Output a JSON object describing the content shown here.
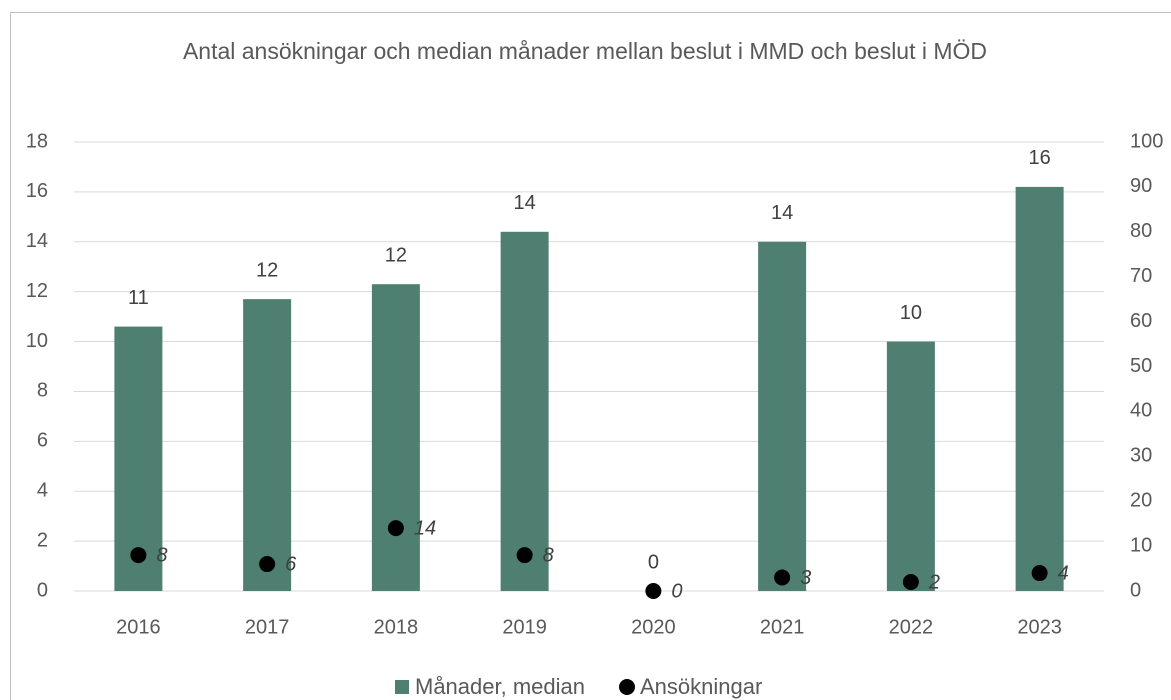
{
  "chart_data": {
    "type": "bar",
    "title": "Antal ansökningar och median månader mellan beslut i MMD och beslut i MÖD",
    "categories": [
      "2016",
      "2017",
      "2018",
      "2019",
      "2020",
      "2021",
      "2022",
      "2023"
    ],
    "series": [
      {
        "name": "Månader, median",
        "color": "#4e7f71",
        "type": "bar",
        "values": [
          10.6,
          11.7,
          12.3,
          14.4,
          0,
          14.0,
          10.0,
          16.2
        ],
        "value_labels": [
          "11",
          "12",
          "12",
          "14",
          "0",
          "14",
          "10",
          "16"
        ]
      },
      {
        "name": "Ansökningar",
        "color": "#000000",
        "type": "scatter",
        "axis": "y2",
        "values": [
          8,
          6,
          14,
          8,
          0,
          3,
          2,
          4
        ]
      }
    ],
    "ylim": [
      0,
      18
    ],
    "yticks": [
      0,
      2,
      4,
      6,
      8,
      10,
      12,
      14,
      16,
      18
    ],
    "y2lim": [
      0,
      100
    ],
    "y2ticks": [
      0,
      10,
      20,
      30,
      40,
      50,
      60,
      70,
      80,
      90,
      100
    ],
    "grid": true,
    "legend": "bottom"
  }
}
